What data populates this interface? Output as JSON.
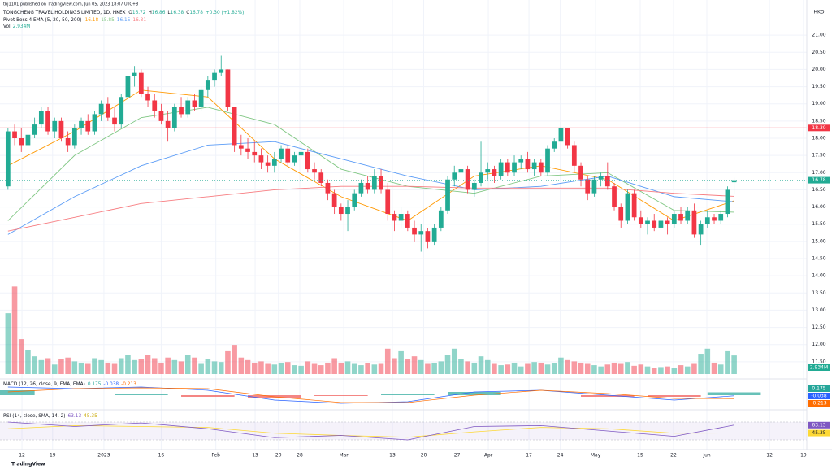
{
  "header": {
    "published": "tbj1101 published on TradingView.com, Jun 05, 2023 18:07 UTC+8",
    "symbol": "TONGCHENG TRAVEL HOLDINGS LIMITED, 1D, HKEX",
    "ohlc_labels": [
      "O",
      "H",
      "L",
      "C"
    ],
    "change": "+0.30 (+1.82%)"
  },
  "footer": {
    "brand": "TradingView"
  },
  "chart_data": [
    {
      "type": "candlestick",
      "currency": "HKD",
      "indicator_title": "Pivot Boss 4 EMA (5, 20, 50, 200)",
      "volume_title": "Vol",
      "volume_label": "2.934M",
      "up_color": "#22ab94",
      "down_color": "#f23645",
      "xlim": [
        -1.2,
        119.9
      ],
      "ylim": [
        11.0,
        21.5
      ],
      "yticks": [
        {
          "value": 21,
          "label": "21.00"
        },
        {
          "value": 20.5,
          "label": "20.50"
        },
        {
          "value": 20,
          "label": "20.00"
        },
        {
          "value": 19.5,
          "label": "19.50"
        },
        {
          "value": 19,
          "label": "19.00"
        },
        {
          "value": 18.5,
          "label": "18.50"
        },
        {
          "value": 18,
          "label": "18.00"
        },
        {
          "value": 17.5,
          "label": "17.50"
        },
        {
          "value": 17,
          "label": "17.00"
        },
        {
          "value": 16.5,
          "label": "16.50"
        },
        {
          "value": 16,
          "label": "16.00"
        },
        {
          "value": 15.5,
          "label": "15.50"
        },
        {
          "value": 15,
          "label": "15.00"
        },
        {
          "value": 14.5,
          "label": "14.50"
        },
        {
          "value": 14,
          "label": "14.00"
        },
        {
          "value": 13.5,
          "label": "13.50"
        },
        {
          "value": 13,
          "label": "13.00"
        },
        {
          "value": 12.5,
          "label": "12.50"
        },
        {
          "value": 12,
          "label": "12.00"
        },
        {
          "value": 11.5,
          "label": "11.50"
        }
      ],
      "xticks": [
        {
          "value": 2.1,
          "label": "12"
        },
        {
          "value": 6.7,
          "label": "19"
        },
        {
          "value": 14.4,
          "label": "2023"
        },
        {
          "value": 23,
          "label": "16"
        },
        {
          "value": 31.2,
          "label": "Feb"
        },
        {
          "value": 37.1,
          "label": "13"
        },
        {
          "value": 40.6,
          "label": "20"
        },
        {
          "value": 43.8,
          "label": "28"
        },
        {
          "value": 50.4,
          "label": "Mar"
        },
        {
          "value": 57.7,
          "label": "13"
        },
        {
          "value": 62.4,
          "label": "20"
        },
        {
          "value": 67.4,
          "label": "27"
        },
        {
          "value": 72.1,
          "label": "Apr"
        },
        {
          "value": 78.2,
          "label": "17"
        },
        {
          "value": 82.9,
          "label": "24"
        },
        {
          "value": 88.2,
          "label": "May"
        },
        {
          "value": 94.9,
          "label": "15"
        },
        {
          "value": 99.9,
          "label": "22"
        },
        {
          "value": 104.9,
          "label": "Jun"
        },
        {
          "value": 114.3,
          "label": "12"
        },
        {
          "value": 119.4,
          "label": "19"
        }
      ],
      "hline": {
        "value": 18.3,
        "label": "18.30",
        "color": "#f23645"
      },
      "candles": [
        [
          16.6,
          18.3,
          16.5,
          18.2
        ],
        [
          18.2,
          18.4,
          17.8,
          18.0
        ],
        [
          18.0,
          18.3,
          17.6,
          17.8
        ],
        [
          17.8,
          18.2,
          17.7,
          18.1
        ],
        [
          18.1,
          18.6,
          18.0,
          18.4
        ],
        [
          18.4,
          18.9,
          18.3,
          18.8
        ],
        [
          18.8,
          18.9,
          18.1,
          18.2
        ],
        [
          18.2,
          18.6,
          18.0,
          18.5
        ],
        [
          18.5,
          18.6,
          17.9,
          18.0
        ],
        [
          18.0,
          18.2,
          17.6,
          17.8
        ],
        [
          17.8,
          18.4,
          17.7,
          18.3
        ],
        [
          18.3,
          18.6,
          18.1,
          18.5
        ],
        [
          18.5,
          18.7,
          18.1,
          18.2
        ],
        [
          18.2,
          18.8,
          18.1,
          18.7
        ],
        [
          18.7,
          19.1,
          18.5,
          19.0
        ],
        [
          19.0,
          19.2,
          18.5,
          18.6
        ],
        [
          18.6,
          18.9,
          18.2,
          18.4
        ],
        [
          18.4,
          19.3,
          18.3,
          19.2
        ],
        [
          19.2,
          19.9,
          19.1,
          19.8
        ],
        [
          19.8,
          20.1,
          19.5,
          19.9
        ],
        [
          19.9,
          20.0,
          19.2,
          19.3
        ],
        [
          19.3,
          19.5,
          18.9,
          19.1
        ],
        [
          19.1,
          19.3,
          18.6,
          18.8
        ],
        [
          18.8,
          19.0,
          18.4,
          18.5
        ],
        [
          18.5,
          18.8,
          17.9,
          18.3
        ],
        [
          18.3,
          19.0,
          18.2,
          18.9
        ],
        [
          18.9,
          19.2,
          18.6,
          18.7
        ],
        [
          18.7,
          19.2,
          18.6,
          19.1
        ],
        [
          19.1,
          19.3,
          18.8,
          18.9
        ],
        [
          18.9,
          19.5,
          18.8,
          19.4
        ],
        [
          19.4,
          19.8,
          19.2,
          19.7
        ],
        [
          19.7,
          20.0,
          19.5,
          19.9
        ],
        [
          19.9,
          20.4,
          19.8,
          20.0
        ],
        [
          20.0,
          20.0,
          18.8,
          18.9
        ],
        [
          18.9,
          18.9,
          17.6,
          17.8
        ],
        [
          17.8,
          18.1,
          17.5,
          17.7
        ],
        [
          17.7,
          18.0,
          17.4,
          17.6
        ],
        [
          17.6,
          17.9,
          17.3,
          17.5
        ],
        [
          17.5,
          17.7,
          17.1,
          17.3
        ],
        [
          17.3,
          17.5,
          17.0,
          17.2
        ],
        [
          17.2,
          17.6,
          17.0,
          17.4
        ],
        [
          17.4,
          17.8,
          17.3,
          17.7
        ],
        [
          17.7,
          17.8,
          17.2,
          17.3
        ],
        [
          17.3,
          17.6,
          17.2,
          17.5
        ],
        [
          17.5,
          17.9,
          17.4,
          17.6
        ],
        [
          17.6,
          17.7,
          17.0,
          17.1
        ],
        [
          17.1,
          17.3,
          16.8,
          17.0
        ],
        [
          17.0,
          17.1,
          16.6,
          16.7
        ],
        [
          16.7,
          16.8,
          16.2,
          16.4
        ],
        [
          16.4,
          16.5,
          15.8,
          16.0
        ],
        [
          16.0,
          16.1,
          15.6,
          15.8
        ],
        [
          15.8,
          16.2,
          15.3,
          16.0
        ],
        [
          16.0,
          16.5,
          15.9,
          16.4
        ],
        [
          16.4,
          16.8,
          16.3,
          16.7
        ],
        [
          16.7,
          16.9,
          16.4,
          16.5
        ],
        [
          16.5,
          17.1,
          16.4,
          16.9
        ],
        [
          16.9,
          17.1,
          16.4,
          16.5
        ],
        [
          16.5,
          16.7,
          15.6,
          15.8
        ],
        [
          15.8,
          15.9,
          15.3,
          15.6
        ],
        [
          15.6,
          16.0,
          15.4,
          15.8
        ],
        [
          15.8,
          15.9,
          15.3,
          15.4
        ],
        [
          15.4,
          15.6,
          15.0,
          15.2
        ],
        [
          15.2,
          15.5,
          14.7,
          15.3
        ],
        [
          15.3,
          15.4,
          14.8,
          15.0
        ],
        [
          15.0,
          15.5,
          14.9,
          15.4
        ],
        [
          15.4,
          16.0,
          15.3,
          15.9
        ],
        [
          15.9,
          16.9,
          15.8,
          16.8
        ],
        [
          16.8,
          17.2,
          16.6,
          17.0
        ],
        [
          17.0,
          17.3,
          16.8,
          17.1
        ],
        [
          17.1,
          17.2,
          16.4,
          16.5
        ],
        [
          16.5,
          16.8,
          16.3,
          16.7
        ],
        [
          16.7,
          17.9,
          16.6,
          17.0
        ],
        [
          17.0,
          17.3,
          16.8,
          17.1
        ],
        [
          17.1,
          17.2,
          16.7,
          16.9
        ],
        [
          16.9,
          17.4,
          16.8,
          17.3
        ],
        [
          17.3,
          17.4,
          16.9,
          17.0
        ],
        [
          17.0,
          17.5,
          16.9,
          17.3
        ],
        [
          17.3,
          17.5,
          17.1,
          17.4
        ],
        [
          17.4,
          17.6,
          17.0,
          17.1
        ],
        [
          17.1,
          17.4,
          16.9,
          17.3
        ],
        [
          17.3,
          17.4,
          16.9,
          17.0
        ],
        [
          17.0,
          17.8,
          16.9,
          17.7
        ],
        [
          17.7,
          18.0,
          17.6,
          17.9
        ],
        [
          17.9,
          18.4,
          17.8,
          18.3
        ],
        [
          18.3,
          18.3,
          17.7,
          17.8
        ],
        [
          17.8,
          17.9,
          17.0,
          17.2
        ],
        [
          17.2,
          17.3,
          16.6,
          16.8
        ],
        [
          16.8,
          16.9,
          16.2,
          16.4
        ],
        [
          16.4,
          16.9,
          16.3,
          16.8
        ],
        [
          16.8,
          17.0,
          16.6,
          16.9
        ],
        [
          16.9,
          17.3,
          16.5,
          16.6
        ],
        [
          16.6,
          16.7,
          15.9,
          16.0
        ],
        [
          16.0,
          16.1,
          15.4,
          15.6
        ],
        [
          15.6,
          16.5,
          15.5,
          16.4
        ],
        [
          16.4,
          16.5,
          15.6,
          15.7
        ],
        [
          15.7,
          15.9,
          15.4,
          15.5
        ],
        [
          15.5,
          15.7,
          15.2,
          15.6
        ],
        [
          15.6,
          15.8,
          15.3,
          15.4
        ],
        [
          15.4,
          15.7,
          15.3,
          15.6
        ],
        [
          15.6,
          15.7,
          15.2,
          15.5
        ],
        [
          15.5,
          15.9,
          15.4,
          15.8
        ],
        [
          15.8,
          16.0,
          15.5,
          15.6
        ],
        [
          15.6,
          16.0,
          15.5,
          15.9
        ],
        [
          15.9,
          16.1,
          15.1,
          15.2
        ],
        [
          15.2,
          15.6,
          14.9,
          15.5
        ],
        [
          15.5,
          15.9,
          15.4,
          15.7
        ],
        [
          15.7,
          15.8,
          15.5,
          15.6
        ],
        [
          15.6,
          15.9,
          15.5,
          15.8
        ],
        [
          15.8,
          16.6,
          15.7,
          16.5
        ],
        [
          16.72,
          16.86,
          16.38,
          16.78
        ]
      ],
      "volume": [
        9.6,
        13.8,
        5.5,
        3.8,
        2.8,
        2.2,
        2.5,
        1.5,
        2.4,
        2.6,
        2.0,
        1.8,
        1.6,
        2.5,
        2.2,
        1.8,
        1.6,
        2.5,
        3.0,
        2.2,
        2.4,
        3.0,
        2.5,
        1.8,
        2.6,
        2.2,
        2.0,
        3.0,
        2.6,
        1.6,
        2.4,
        2.0,
        1.9,
        3.6,
        4.6,
        2.6,
        2.2,
        1.8,
        2.0,
        1.6,
        1.5,
        1.8,
        1.9,
        1.4,
        1.3,
        2.0,
        1.6,
        1.4,
        1.8,
        2.5,
        1.8,
        2.0,
        1.6,
        1.4,
        1.7,
        1.5,
        1.6,
        4.0,
        2.5,
        3.6,
        2.4,
        2.8,
        2.2,
        1.6,
        1.8,
        2.0,
        3.0,
        4.0,
        2.4,
        2.0,
        1.8,
        2.8,
        2.2,
        1.6,
        1.4,
        1.5,
        1.8,
        1.2,
        1.6,
        1.9,
        1.8,
        1.5,
        1.7,
        2.6,
        2.2,
        2.0,
        1.8,
        1.6,
        1.4,
        1.2,
        1.5,
        1.8,
        1.6,
        1.9,
        1.3,
        1.5,
        1.2,
        1.0,
        1.1,
        1.2,
        1.0,
        1.4,
        1.2,
        1.6,
        3.2,
        4.0,
        1.8,
        1.5,
        3.6,
        2.934
      ],
      "line_x": [
        0,
        10,
        20,
        30,
        40,
        50,
        60,
        70,
        80,
        90,
        100,
        109
      ],
      "lines": [
        {
          "color": "#ff9800",
          "values": [
            17.2,
            18.2,
            19.4,
            19.2,
            17.4,
            16.3,
            15.6,
            16.9,
            17.2,
            16.8,
            15.6,
            16.18
          ]
        },
        {
          "color": "#81c784",
          "values": [
            15.6,
            17.5,
            18.6,
            18.9,
            18.4,
            17.1,
            16.6,
            16.4,
            16.9,
            17.0,
            15.9,
            15.85
          ]
        },
        {
          "color": "#5b9cf6",
          "values": [
            15.2,
            16.3,
            17.2,
            17.8,
            17.9,
            17.4,
            16.9,
            16.5,
            16.6,
            16.9,
            16.3,
            16.15
          ]
        },
        {
          "color": "#f77c80",
          "values": [
            15.3,
            15.7,
            16.1,
            16.3,
            16.5,
            16.6,
            16.6,
            16.55,
            16.55,
            16.55,
            16.4,
            16.31
          ]
        }
      ]
    },
    {
      "type": "macd",
      "title": "MACD (12, 26, close, 9, EMA, EMA)",
      "ylim": [
        -0.8,
        0.8
      ],
      "x": [
        0,
        10,
        20,
        30,
        40,
        50,
        60,
        70,
        80,
        90,
        100,
        109
      ],
      "histogram": {
        "color": "#26a69a",
        "down_color": "#ef5350",
        "values": [
          0.3,
          0.0,
          0.05,
          -0.1,
          -0.2,
          -0.05,
          0.05,
          0.2,
          0.0,
          -0.1,
          -0.1,
          0.175
        ]
      },
      "macd": {
        "color": "#2962ff",
        "values": [
          0.5,
          0.4,
          0.5,
          0.3,
          -0.3,
          -0.5,
          -0.4,
          0.2,
          0.3,
          0.0,
          -0.3,
          -0.038
        ]
      },
      "signal": {
        "color": "#ff6d00",
        "values": [
          0.2,
          0.4,
          0.45,
          0.4,
          -0.1,
          -0.45,
          -0.45,
          0.0,
          0.3,
          0.1,
          -0.2,
          -0.213
        ]
      }
    },
    {
      "type": "rsi",
      "title": "RSI (14, close, SMA, 14, 2)",
      "ylim": [
        10,
        90
      ],
      "band": [
        30,
        70
      ],
      "x": [
        0,
        10,
        20,
        30,
        40,
        50,
        60,
        70,
        80,
        90,
        100,
        109
      ],
      "rsi": {
        "color": "#7e57c2",
        "values": [
          70,
          60,
          68,
          55,
          35,
          40,
          30,
          60,
          62,
          50,
          38,
          63.13
        ]
      },
      "ma": {
        "color": "#fdd835",
        "values": [
          55,
          62,
          60,
          58,
          45,
          40,
          36,
          48,
          58,
          55,
          45,
          45.35
        ]
      }
    }
  ]
}
